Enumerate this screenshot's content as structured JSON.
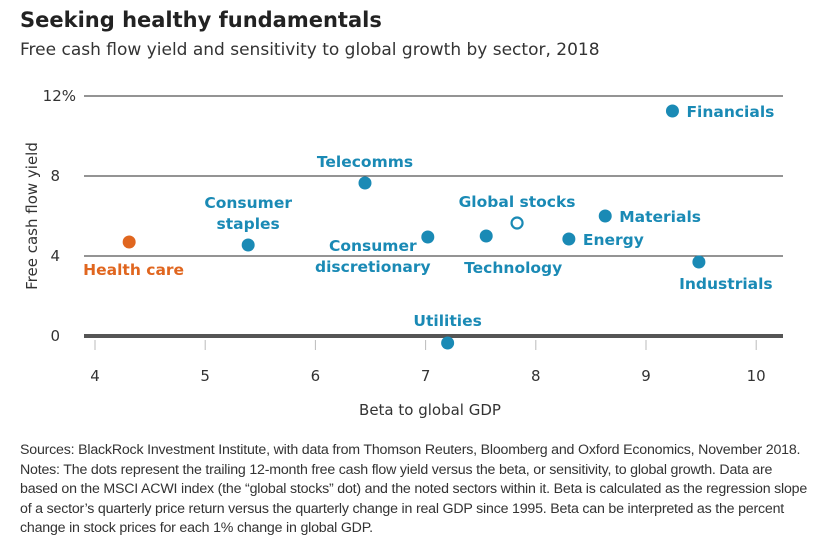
{
  "chart_data": {
    "type": "scatter",
    "title": "Seeking healthy fundamentals",
    "subtitle": "Free cash flow yield and sensitivity to global growth by sector, 2018",
    "xlabel": "Beta to global GDP",
    "ylabel": "Free cash flow yield",
    "xlim": [
      3.9,
      10.25
    ],
    "ylim": [
      0,
      12
    ],
    "x_ticks": [
      "4",
      "5",
      "6",
      "7",
      "8",
      "9",
      "10"
    ],
    "y_ticks": [
      "0",
      "4",
      "8",
      "12%"
    ],
    "grid": true,
    "colors": {
      "sector": "#1a8ab5",
      "highlight": "#e0661f",
      "axis": "#555555"
    },
    "points": [
      {
        "label": "Health care",
        "x": 4.31,
        "y": 4.7,
        "color": "#e0661f",
        "style": "filled",
        "pos": "below-right"
      },
      {
        "label": "Consumer staples",
        "lines": [
          "Consumer",
          "staples"
        ],
        "x": 5.39,
        "y": 4.55,
        "color": "#1a8ab5",
        "style": "filled",
        "pos": "above"
      },
      {
        "label": "Telecomms",
        "x": 6.45,
        "y": 7.65,
        "color": "#1a8ab5",
        "style": "filled",
        "pos": "above"
      },
      {
        "label": "Consumer discretionary",
        "lines": [
          "Consumer",
          "discretionary"
        ],
        "x": 7.02,
        "y": 4.95,
        "color": "#1a8ab5",
        "style": "filled",
        "pos": "left"
      },
      {
        "label": "Technology",
        "x": 7.55,
        "y": 5.0,
        "color": "#1a8ab5",
        "style": "filled",
        "pos": "below"
      },
      {
        "label": "Global stocks",
        "x": 7.83,
        "y": 5.65,
        "color": "#1a8ab5",
        "style": "hollow",
        "pos": "above"
      },
      {
        "label": "Energy",
        "x": 8.3,
        "y": 4.85,
        "color": "#1a8ab5",
        "style": "filled",
        "pos": "right"
      },
      {
        "label": "Materials",
        "x": 8.63,
        "y": 6.0,
        "color": "#1a8ab5",
        "style": "filled",
        "pos": "right"
      },
      {
        "label": "Industrials",
        "x": 9.48,
        "y": 3.7,
        "color": "#1a8ab5",
        "style": "filled",
        "pos": "below"
      },
      {
        "label": "Financials",
        "x": 9.24,
        "y": 11.25,
        "color": "#1a8ab5",
        "style": "filled",
        "pos": "right"
      },
      {
        "label": "Utilities",
        "x": 7.2,
        "y": -0.35,
        "color": "#1a8ab5",
        "style": "filled",
        "pos": "above"
      }
    ]
  },
  "notes": "Sources: BlackRock Investment Institute, with data from Thomson Reuters, Bloomberg and Oxford Economics, November 2018. Notes: The dots represent the trailing 12-month free cash flow yield versus the beta, or sensitivity, to global growth. Data are based on the MSCI ACWI index (the “global stocks” dot) and the noted sectors within it. Beta is calculated as the regression slope of a sector’s quarterly price return versus the quarterly change in real GDP since 1995. Beta can be interpreted as the percent change in stock prices for each 1% change in global GDP."
}
